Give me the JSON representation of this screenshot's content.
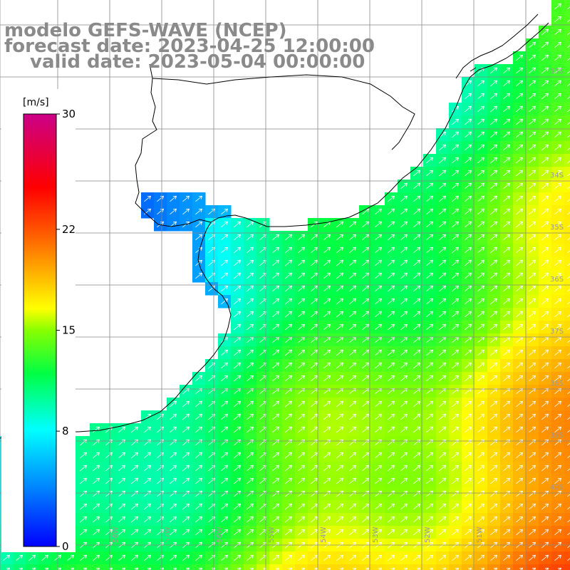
{
  "header": {
    "line1": "modelo GEFS-WAVE (NCEP)",
    "line2": "forecast date: 2023-04-25 12:00:00",
    "line3": "valid date: 2023-05-04 00:00:00"
  },
  "colorbar": {
    "unit": "[m/s]",
    "ticks": [
      {
        "value": 30,
        "label": "30"
      },
      {
        "value": 22,
        "label": "22"
      },
      {
        "value": 15,
        "label": "15"
      },
      {
        "value": 8,
        "label": "8"
      },
      {
        "value": 0,
        "label": "0"
      }
    ],
    "range": [
      0,
      30
    ]
  },
  "map": {
    "lat_labels": [
      "33S",
      "34S",
      "35S",
      "36S",
      "37S",
      "38S",
      "39S",
      "40S"
    ],
    "lon_labels": [
      "58W",
      "57W",
      "56W",
      "55W",
      "54W",
      "53W",
      "52W",
      "51W"
    ],
    "colors": {
      "land": "#ffffff",
      "coast": "#000000",
      "grid": "#888888",
      "arrow": "#ffffff"
    }
  }
}
